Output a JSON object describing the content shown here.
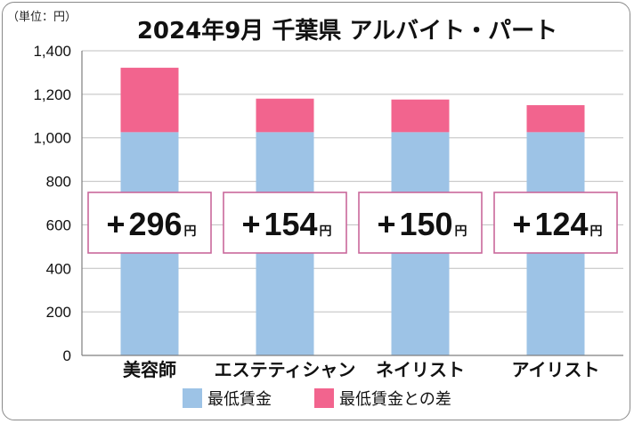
{
  "chart_data": {
    "type": "bar",
    "stacked": true,
    "title": "2024年9月 千葉県 アルバイト・パート",
    "unit_label": "（単位：円）",
    "categories": [
      "美容師",
      "エステティシャン",
      "ネイリスト",
      "アイリスト"
    ],
    "series": [
      {
        "name": "最低賃金",
        "values": [
          1026,
          1026,
          1026,
          1026
        ],
        "color": "#9dc3e6"
      },
      {
        "name": "最低賃金との差",
        "values": [
          296,
          154,
          150,
          124
        ],
        "color": "#f2648e"
      }
    ],
    "callouts": [
      {
        "sign": "+",
        "value": "296",
        "unit": "円"
      },
      {
        "sign": "+",
        "value": "154",
        "unit": "円"
      },
      {
        "sign": "+",
        "value": "150",
        "unit": "円"
      },
      {
        "sign": "+",
        "value": "124",
        "unit": "円"
      }
    ],
    "yticks": [
      "0",
      "200",
      "400",
      "600",
      "800",
      "1,000",
      "1,200",
      "1,400"
    ],
    "ylim": [
      0,
      1400
    ],
    "grid": true,
    "legend_position": "bottom",
    "callout_border_color": "#c9689b",
    "gridline_color": "#bfbfbf",
    "axis_color": "#7f7f7f"
  }
}
